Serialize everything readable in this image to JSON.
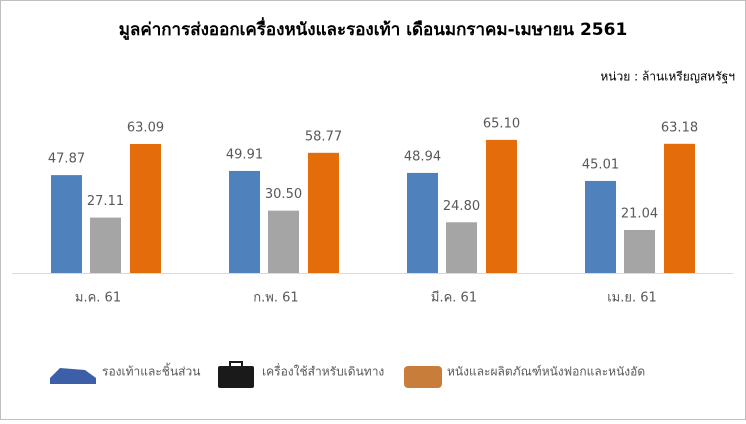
{
  "chart_data": {
    "type": "bar",
    "title": "มูลค่าการส่งออกเครื่องหนังและรองเท้า เดือนมกราคม-เมษายน 2561",
    "unit": "หน่วย : ล้านเหรียญสหรัฐฯ",
    "categories": [
      "ม.ค. 61",
      "ก.พ. 61",
      "มี.ค. 61",
      "เม.ย. 61"
    ],
    "series": [
      {
        "name": "รองเท้าและชิ้นส่วน",
        "color": "#4f81bd",
        "values": [
          47.87,
          49.91,
          48.94,
          45.01
        ],
        "value_labels": [
          "47.87",
          "49.91",
          "48.94",
          "45.01"
        ]
      },
      {
        "name": "เครื่องใช้สำหรับเดินทาง",
        "color": "#a5a5a5",
        "values": [
          27.11,
          30.5,
          24.8,
          21.04
        ],
        "value_labels": [
          "27.11",
          "30.50",
          "24.80",
          "21.04"
        ]
      },
      {
        "name": "หนังและผลิตภัณฑ์หนังฟอกและหนังอัด",
        "color": "#e46c0a",
        "values": [
          63.09,
          58.77,
          65.1,
          63.18
        ],
        "value_labels": [
          "63.09",
          "58.77",
          "65.10",
          "63.18"
        ]
      }
    ]
  }
}
